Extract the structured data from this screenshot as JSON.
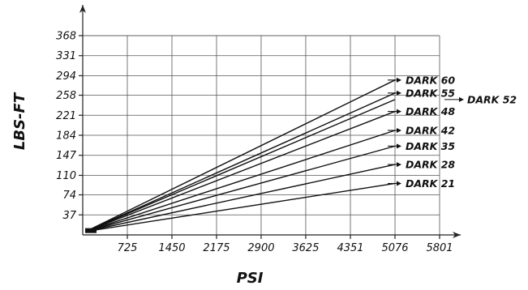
{
  "chart_data": {
    "type": "line",
    "xlabel": "PSI",
    "ylabel": "LBS-FT",
    "x_ticks": [
      725,
      1450,
      2175,
      2900,
      3625,
      4351,
      5076,
      5801
    ],
    "y_ticks": [
      37,
      74,
      110,
      147,
      184,
      221,
      258,
      294,
      331,
      368
    ],
    "xlim": [
      0,
      5801
    ],
    "ylim": [
      0,
      368
    ],
    "grid": true,
    "series": [
      {
        "name": "DARK 60",
        "x": [
          0,
          5076
        ],
        "y": [
          5,
          286
        ]
      },
      {
        "name": "DARK 55",
        "x": [
          0,
          5076
        ],
        "y": [
          5,
          262
        ]
      },
      {
        "name": "DARK 52",
        "x": [
          0,
          5076
        ],
        "y": [
          5,
          250
        ]
      },
      {
        "name": "DARK 48",
        "x": [
          0,
          5076
        ],
        "y": [
          5,
          228
        ]
      },
      {
        "name": "DARK 42",
        "x": [
          0,
          5076
        ],
        "y": [
          5,
          193
        ]
      },
      {
        "name": "DARK 35",
        "x": [
          0,
          5076
        ],
        "y": [
          5,
          164
        ]
      },
      {
        "name": "DARK 28",
        "x": [
          0,
          5076
        ],
        "y": [
          5,
          130
        ]
      },
      {
        "name": "DARK 21",
        "x": [
          0,
          5076
        ],
        "y": [
          5,
          95
        ]
      }
    ]
  }
}
